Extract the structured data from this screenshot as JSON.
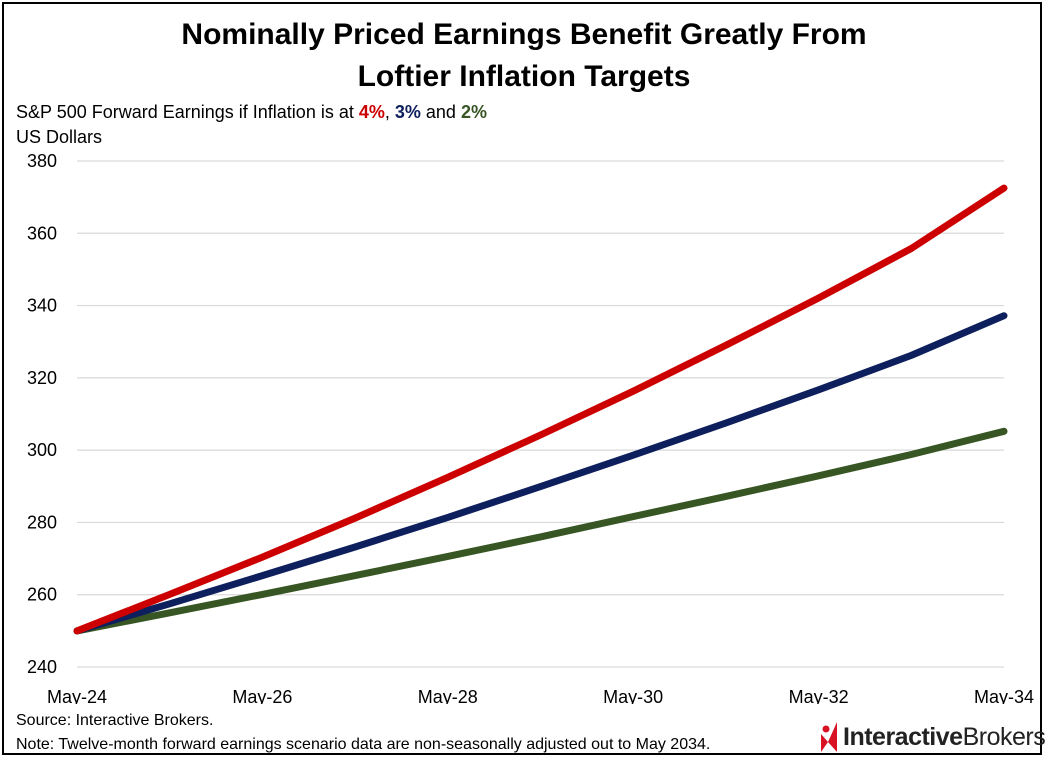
{
  "title_line1": "Nominally Priced Earnings Benefit Greatly From",
  "title_line2": "Loftier Inflation Targets",
  "subtitle": {
    "prefix": "S&P 500 Forward Earnings if Inflation is at ",
    "s1": "4%",
    "sep1": ", ",
    "s2": "3%",
    "sep2": " and ",
    "s3": "2%"
  },
  "units": "US Dollars",
  "source": "Source: Interactive Brokers.",
  "note": "Note: Twelve-month forward earnings scenario data are non-seasonally adjusted out to May 2034.",
  "logo": {
    "bold": "Interactive",
    "regular": "Brokers"
  },
  "colors": {
    "s4": "#cc0000",
    "s3": "#0d1f5c",
    "s2": "#375623",
    "grid": "#d9d9d9"
  },
  "chart_data": {
    "type": "line",
    "x": [
      "May-24",
      "May-25",
      "May-26",
      "May-27",
      "May-28",
      "May-29",
      "May-30",
      "May-31",
      "May-32",
      "May-33",
      "May-34"
    ],
    "x_tick_labels": [
      "May-24",
      "May-26",
      "May-28",
      "May-30",
      "May-32",
      "May-34"
    ],
    "y_ticks": [
      240,
      260,
      280,
      300,
      320,
      340,
      360,
      380
    ],
    "ylim": [
      240,
      380
    ],
    "grid": true,
    "series": [
      {
        "name": "4%",
        "color": "#cc0000",
        "values": [
          250.0,
          260.1,
          270.4,
          281.2,
          292.5,
          304.2,
          316.3,
          329.0,
          342.1,
          355.8,
          372.5
        ]
      },
      {
        "name": "3%",
        "color": "#0d1f5c",
        "values": [
          250.0,
          257.5,
          265.3,
          273.2,
          281.4,
          289.9,
          298.6,
          307.5,
          316.7,
          326.2,
          337.2
        ]
      },
      {
        "name": "2%",
        "color": "#375623",
        "values": [
          250.0,
          255.0,
          260.1,
          265.3,
          270.6,
          276.0,
          281.6,
          287.2,
          292.9,
          298.8,
          305.2
        ]
      }
    ]
  }
}
